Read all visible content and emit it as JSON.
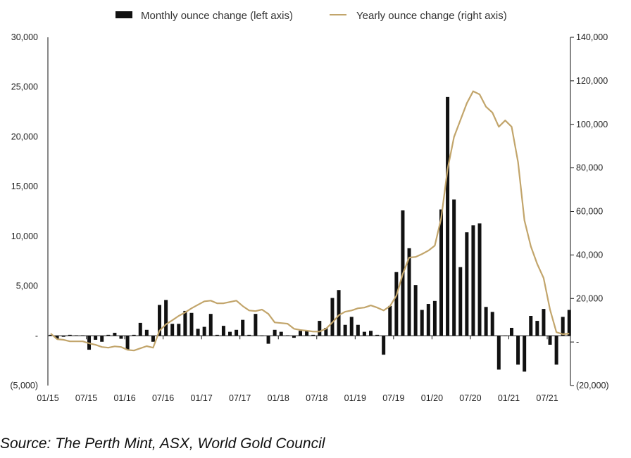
{
  "chart_data": {
    "type": "bar+line",
    "title": "",
    "source": "Source: The Perth Mint, ASX, World Gold Council",
    "legend_position": "top",
    "grid": false,
    "colors": {
      "bars": "#111111",
      "line": "#C2A56B"
    },
    "left_axis": {
      "ylim": [
        -5000,
        30000
      ],
      "ticks": [
        -5000,
        0,
        5000,
        10000,
        15000,
        20000,
        25000,
        30000
      ],
      "tick_labels": [
        "(5,000)",
        "-",
        "5,000",
        "10,000",
        "15,000",
        "20,000",
        "25,000",
        "30,000"
      ]
    },
    "right_axis": {
      "ylim": [
        -20000,
        140000
      ],
      "ticks": [
        -20000,
        0,
        20000,
        40000,
        60000,
        80000,
        100000,
        120000,
        140000
      ],
      "tick_labels": [
        "(20,000)",
        "-",
        "20,000",
        "40,000",
        "60,000",
        "80,000",
        "100,000",
        "120,000",
        "140,000"
      ]
    },
    "x_tick_labels": [
      "01/15",
      "07/15",
      "01/16",
      "07/16",
      "01/17",
      "07/17",
      "01/18",
      "07/18",
      "01/19",
      "07/19",
      "01/20",
      "07/20",
      "01/21",
      "07/21"
    ],
    "x_start": "01/15",
    "x_end": "10/21",
    "series": [
      {
        "name": "Monthly ounce change (left axis)",
        "type": "bar",
        "axis": "left",
        "values": [
          100,
          -300,
          -100,
          100,
          50,
          50,
          -1400,
          -400,
          -600,
          100,
          300,
          -300,
          -1400,
          100,
          1300,
          600,
          -600,
          3100,
          3600,
          1200,
          1200,
          2500,
          2300,
          700,
          900,
          2200,
          100,
          1000,
          400,
          600,
          1600,
          100,
          2200,
          -50,
          -800,
          600,
          400,
          50,
          -200,
          500,
          500,
          100,
          1500,
          800,
          3800,
          4600,
          1100,
          1900,
          1100,
          400,
          500,
          100,
          -1900,
          3000,
          6400,
          12600,
          8800,
          5100,
          2600,
          3200,
          3500,
          12700,
          24000,
          13700,
          6900,
          10400,
          11100,
          11300,
          2900,
          2400,
          -3400,
          0,
          800,
          -2900,
          -3600,
          2000,
          1500,
          2700,
          -900,
          -2900,
          1900,
          2600
        ]
      },
      {
        "name": "Yearly ounce change (right axis)",
        "type": "line",
        "axis": "right",
        "values": [
          3900,
          1300,
          1000,
          300,
          300,
          300,
          -600,
          -1300,
          -2300,
          -2600,
          -2000,
          -2300,
          -3600,
          -3900,
          -2900,
          -1900,
          -2600,
          5200,
          8100,
          10000,
          12000,
          13600,
          15500,
          17100,
          18700,
          19000,
          17800,
          17800,
          18400,
          19000,
          16500,
          14500,
          14200,
          14900,
          12900,
          9000,
          8700,
          8400,
          6100,
          5500,
          5200,
          4800,
          4800,
          6100,
          9000,
          12300,
          13900,
          14500,
          15500,
          15800,
          16800,
          15800,
          14500,
          16500,
          21300,
          31300,
          38800,
          39100,
          40400,
          42000,
          44300,
          56900,
          79500,
          94200,
          102000,
          109700,
          115200,
          113800,
          108100,
          105400,
          98900,
          101800,
          98900,
          82700,
          55900,
          43900,
          35900,
          29400,
          14900,
          4500,
          3600,
          3900
        ]
      }
    ]
  }
}
